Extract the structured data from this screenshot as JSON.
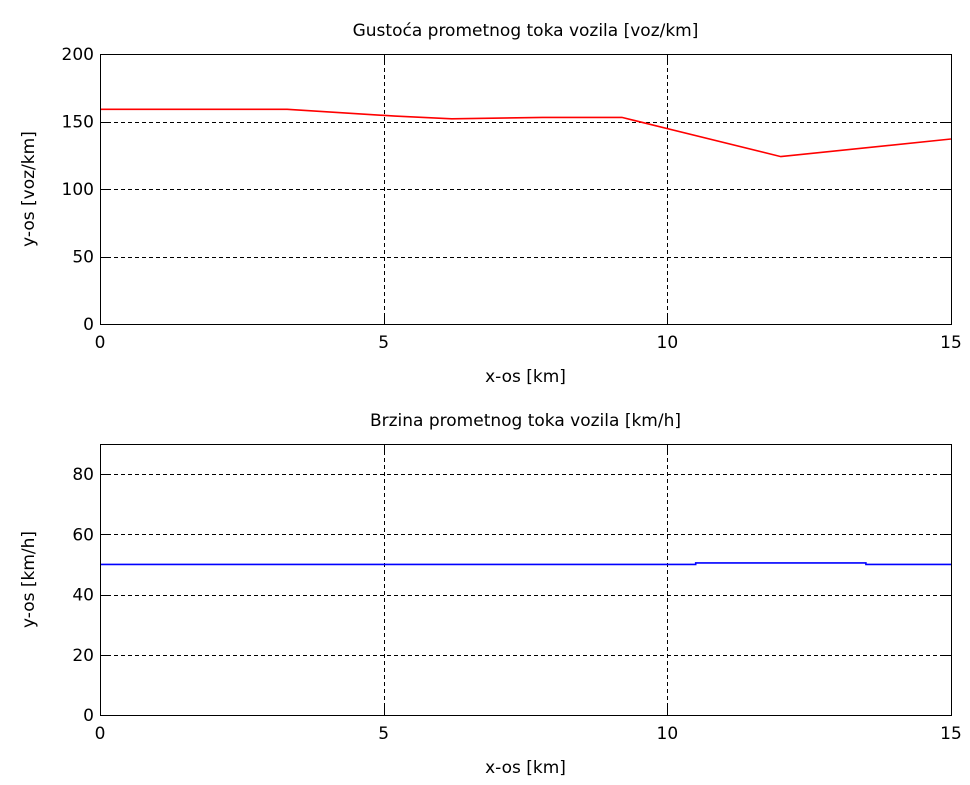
{
  "chart_data": [
    {
      "type": "line",
      "title": "Gustoća prometnog toka vozila [voz/km]",
      "xlabel": "x-os [km]",
      "ylabel": "y-os [voz/km]",
      "xlim": [
        0,
        15
      ],
      "ylim": [
        0,
        200
      ],
      "xticks": [
        0,
        5,
        10,
        15
      ],
      "yticks": [
        0,
        50,
        100,
        150,
        200
      ],
      "grid": true,
      "series": [
        {
          "color": "#ff0000",
          "x": [
            0,
            3.3,
            5.2,
            6.2,
            7.8,
            9.2,
            12.0,
            15.0
          ],
          "y": [
            159,
            159,
            154,
            152,
            153,
            153,
            124,
            137
          ]
        }
      ]
    },
    {
      "type": "line",
      "title": "Brzina prometnog toka vozila [km/h]",
      "xlabel": "x-os [km]",
      "ylabel": "y-os [km/h]",
      "xlim": [
        0,
        15
      ],
      "ylim": [
        0,
        90
      ],
      "xticks": [
        0,
        5,
        10,
        15
      ],
      "yticks": [
        0,
        20,
        40,
        60,
        80
      ],
      "grid": true,
      "series": [
        {
          "color": "#0000ff",
          "x": [
            0,
            10.5,
            10.5,
            13.5,
            13.5,
            15.0
          ],
          "y": [
            50.0,
            50.0,
            50.5,
            50.5,
            50.0,
            50.0
          ]
        }
      ]
    }
  ]
}
